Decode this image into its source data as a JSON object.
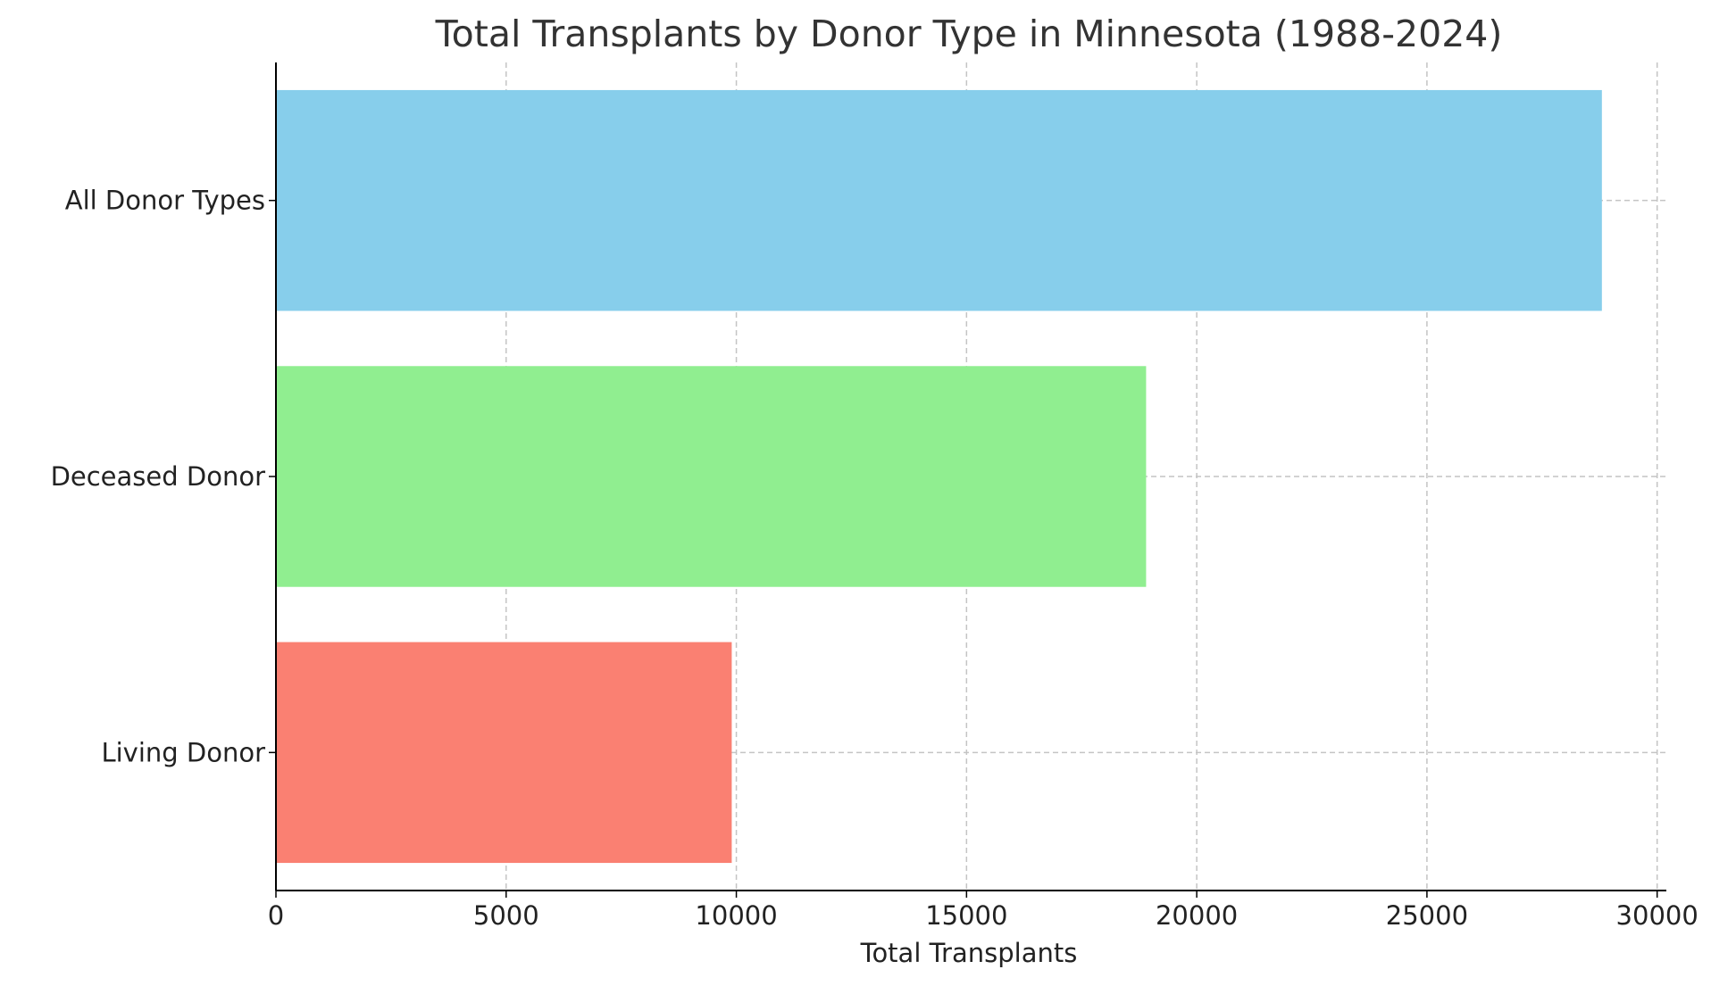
{
  "chart_data": {
    "type": "bar",
    "orientation": "horizontal",
    "title": "Total Transplants by Donor Type in Minnesota (1988-2024)",
    "xlabel": "Total Transplants",
    "ylabel": "",
    "categories": [
      "All Donor Types",
      "Deceased Donor",
      "Living Donor"
    ],
    "values": [
      28800,
      18900,
      9900
    ],
    "colors": [
      "#87ceeb",
      "#90ee90",
      "#fa8072"
    ],
    "xlim": [
      0,
      30200
    ],
    "xticks": [
      0,
      5000,
      10000,
      15000,
      20000,
      25000,
      30000
    ],
    "xtick_labels": [
      "0",
      "5000",
      "10000",
      "15000",
      "20000",
      "25000",
      "30000"
    ],
    "grid": true
  }
}
